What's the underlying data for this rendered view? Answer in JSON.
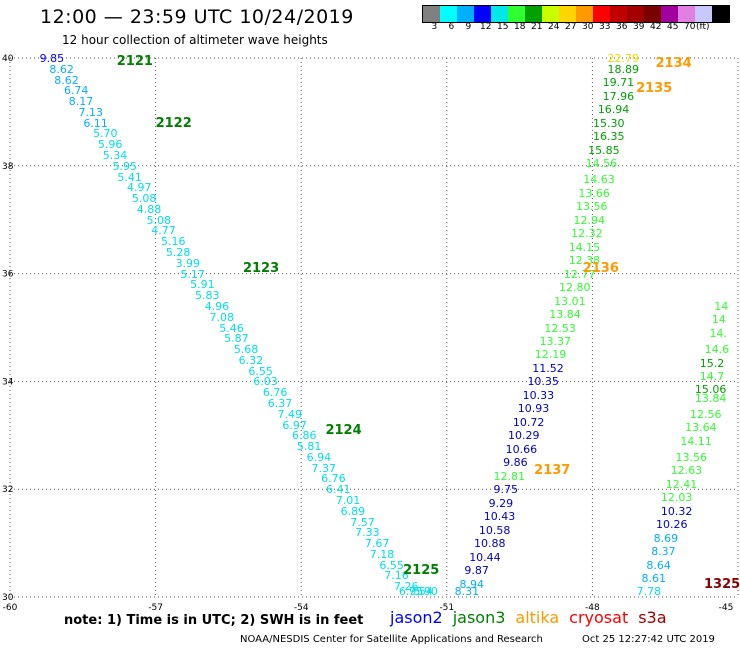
{
  "title": "12:00 — 23:59 UTC 10/24/2019",
  "subtitle": "12 hour collection of altimeter wave heights",
  "colorbar": {
    "colors": [
      "#808080",
      "#00ffff",
      "#00b0ff",
      "#0000ff",
      "#00e8e8",
      "#30ff30",
      "#00a000",
      "#c8ff00",
      "#ffd400",
      "#ff9900",
      "#ff0000",
      "#c00000",
      "#a00000",
      "#7a0000",
      "#a000a0",
      "#e080e0",
      "#c8c8ff",
      "#000000"
    ],
    "labels": [
      "3",
      "6",
      "9",
      "12",
      "15",
      "18",
      "21",
      "24",
      "27",
      "30",
      "33",
      "36",
      "39",
      "42",
      "45",
      "70",
      "(ft)"
    ]
  },
  "axes": {
    "lon_ticks": [
      "-60",
      "-57",
      "-54",
      "-51",
      "-48",
      "-45"
    ],
    "lat_ticks": [
      "40",
      "38",
      "36",
      "34",
      "32",
      "30"
    ],
    "lon_range": [
      -60,
      -45
    ],
    "lat_range": [
      30,
      40
    ]
  },
  "chart_data": {
    "type": "scatter",
    "tracks": [
      {
        "id": "2121",
        "satellite": "jason3",
        "lon": -57.8,
        "lat": 39.95
      },
      {
        "id": "2122",
        "satellite": "jason3",
        "lon": -57.0,
        "lat": 38.8
      },
      {
        "id": "2123",
        "satellite": "jason3",
        "lon": -55.2,
        "lat": 36.1
      },
      {
        "id": "2124",
        "satellite": "jason3",
        "lon": -53.5,
        "lat": 33.1
      },
      {
        "id": "2125",
        "satellite": "jason3",
        "lon": -51.9,
        "lat": 30.5
      },
      {
        "id": "2134",
        "satellite": "altika",
        "lon": -46.7,
        "lat": 39.9
      },
      {
        "id": "2135",
        "satellite": "altika",
        "lon": -47.1,
        "lat": 39.45
      },
      {
        "id": "2136",
        "satellite": "altika",
        "lon": -48.2,
        "lat": 36.1
      },
      {
        "id": "2137",
        "satellite": "altika",
        "lon": -49.2,
        "lat": 32.35
      },
      {
        "id": "1325",
        "satellite": "s3a",
        "lon": -45.6,
        "lat": 30.25
      }
    ],
    "points": [
      {
        "v": "9.85",
        "lon": -59.1,
        "lat": 40.0,
        "c": "#0000ff"
      },
      {
        "v": "8.62",
        "lon": -58.9,
        "lat": 39.8,
        "c": "#00b0ff"
      },
      {
        "v": "8.62",
        "lon": -58.8,
        "lat": 39.6,
        "c": "#00b0ff"
      },
      {
        "v": "6.74",
        "lon": -58.6,
        "lat": 39.4,
        "c": "#00b0ff"
      },
      {
        "v": "8.17",
        "lon": -58.5,
        "lat": 39.2,
        "c": "#00b0ff"
      },
      {
        "v": "7.13",
        "lon": -58.3,
        "lat": 39.0,
        "c": "#00b0ff"
      },
      {
        "v": "6.11",
        "lon": -58.2,
        "lat": 38.8,
        "c": "#00b0ff"
      },
      {
        "v": "5.70",
        "lon": -58.0,
        "lat": 38.6,
        "c": "#00e0e8"
      },
      {
        "v": "5.96",
        "lon": -57.9,
        "lat": 38.4,
        "c": "#00e0e8"
      },
      {
        "v": "5.34",
        "lon": -57.8,
        "lat": 38.2,
        "c": "#00e0e8"
      },
      {
        "v": "5.95",
        "lon": -57.6,
        "lat": 38.0,
        "c": "#00e0e8"
      },
      {
        "v": "5.41",
        "lon": -57.5,
        "lat": 37.8,
        "c": "#00e0e8"
      },
      {
        "v": "4.97",
        "lon": -57.3,
        "lat": 37.6,
        "c": "#00e0e8"
      },
      {
        "v": "5.08",
        "lon": -57.2,
        "lat": 37.4,
        "c": "#00e0e8"
      },
      {
        "v": "4.88",
        "lon": -57.1,
        "lat": 37.2,
        "c": "#00e0e8"
      },
      {
        "v": "5.08",
        "lon": -56.9,
        "lat": 37.0,
        "c": "#00e0e8"
      },
      {
        "v": "4.77",
        "lon": -56.8,
        "lat": 36.8,
        "c": "#00e0e8"
      },
      {
        "v": "5.16",
        "lon": -56.6,
        "lat": 36.6,
        "c": "#00e0e8"
      },
      {
        "v": "5.28",
        "lon": -56.5,
        "lat": 36.4,
        "c": "#00e0e8"
      },
      {
        "v": "3.99",
        "lon": -56.3,
        "lat": 36.2,
        "c": "#00e0e8"
      },
      {
        "v": "5.17",
        "lon": -56.2,
        "lat": 36.0,
        "c": "#00e0e8"
      },
      {
        "v": "5.91",
        "lon": -56.0,
        "lat": 35.8,
        "c": "#00e0e8"
      },
      {
        "v": "5.83",
        "lon": -55.9,
        "lat": 35.6,
        "c": "#00e0e8"
      },
      {
        "v": "4.96",
        "lon": -55.7,
        "lat": 35.4,
        "c": "#00e0e8"
      },
      {
        "v": "7.08",
        "lon": -55.6,
        "lat": 35.2,
        "c": "#00e0e8"
      },
      {
        "v": "5.46",
        "lon": -55.4,
        "lat": 35.0,
        "c": "#00e0e8"
      },
      {
        "v": "5.87",
        "lon": -55.3,
        "lat": 34.8,
        "c": "#00e0e8"
      },
      {
        "v": "5.68",
        "lon": -55.1,
        "lat": 34.6,
        "c": "#00e0e8"
      },
      {
        "v": "6.32",
        "lon": -55.0,
        "lat": 34.4,
        "c": "#00e0e8"
      },
      {
        "v": "6.55",
        "lon": -54.8,
        "lat": 34.2,
        "c": "#00e0e8"
      },
      {
        "v": "6.03",
        "lon": -54.7,
        "lat": 34.0,
        "c": "#00e0e8"
      },
      {
        "v": "6.76",
        "lon": -54.5,
        "lat": 33.8,
        "c": "#00e0e8"
      },
      {
        "v": "6.37",
        "lon": -54.4,
        "lat": 33.6,
        "c": "#00e0e8"
      },
      {
        "v": "7.49",
        "lon": -54.2,
        "lat": 33.4,
        "c": "#00e0e8"
      },
      {
        "v": "6.97",
        "lon": -54.1,
        "lat": 33.2,
        "c": "#00e0e8"
      },
      {
        "v": "6.86",
        "lon": -53.9,
        "lat": 33.0,
        "c": "#00e0e8"
      },
      {
        "v": "5.81",
        "lon": -53.8,
        "lat": 32.8,
        "c": "#00e0e8"
      },
      {
        "v": "6.94",
        "lon": -53.6,
        "lat": 32.6,
        "c": "#00e0e8"
      },
      {
        "v": "7.37",
        "lon": -53.5,
        "lat": 32.4,
        "c": "#00e0e8"
      },
      {
        "v": "6.76",
        "lon": -53.3,
        "lat": 32.2,
        "c": "#00e0e8"
      },
      {
        "v": "6.41",
        "lon": -53.2,
        "lat": 32.0,
        "c": "#00e0e8"
      },
      {
        "v": "7.01",
        "lon": -53.0,
        "lat": 31.8,
        "c": "#00e0e8"
      },
      {
        "v": "6.89",
        "lon": -52.9,
        "lat": 31.6,
        "c": "#00e0e8"
      },
      {
        "v": "7.57",
        "lon": -52.7,
        "lat": 31.4,
        "c": "#00e0e8"
      },
      {
        "v": "7.33",
        "lon": -52.6,
        "lat": 31.2,
        "c": "#00e0e8"
      },
      {
        "v": "7.67",
        "lon": -52.4,
        "lat": 31.0,
        "c": "#00e0e8"
      },
      {
        "v": "7.18",
        "lon": -52.3,
        "lat": 30.8,
        "c": "#00e0e8"
      },
      {
        "v": "6.55",
        "lon": -52.1,
        "lat": 30.6,
        "c": "#00e0e8"
      },
      {
        "v": "7.16",
        "lon": -52.0,
        "lat": 30.4,
        "c": "#00e0e8"
      },
      {
        "v": "7.26",
        "lon": -51.8,
        "lat": 30.2,
        "c": "#00e0e8"
      },
      {
        "v": "6.95",
        "lon": -51.7,
        "lat": 30.0,
        "c": "#00e0e8"
      },
      {
        "v": "7.54",
        "lon": -51.5,
        "lat": 29.8,
        "c": "#00e0e8"
      },
      {
        "v": "5.90",
        "lon": -51.4,
        "lat": 29.6,
        "c": "#00e0e8"
      },
      {
        "v": "22.79",
        "lon": -47.4,
        "lat": 40.0,
        "c": "#ffd400"
      },
      {
        "v": "18.89",
        "lon": -47.4,
        "lat": 39.8,
        "c": "#00a000"
      },
      {
        "v": "19.71",
        "lon": -47.5,
        "lat": 39.55,
        "c": "#00a000"
      },
      {
        "v": "17.96",
        "lon": -47.5,
        "lat": 39.3,
        "c": "#00a000"
      },
      {
        "v": "16.94",
        "lon": -47.6,
        "lat": 39.05,
        "c": "#00a000"
      },
      {
        "v": "15.30",
        "lon": -47.7,
        "lat": 38.8,
        "c": "#00a000"
      },
      {
        "v": "16.35",
        "lon": -47.7,
        "lat": 38.55,
        "c": "#00a000"
      },
      {
        "v": "15.85",
        "lon": -47.8,
        "lat": 38.3,
        "c": "#00a000"
      },
      {
        "v": "14.56",
        "lon": -47.85,
        "lat": 38.05,
        "c": "#30ff30"
      },
      {
        "v": "14.63",
        "lon": -47.9,
        "lat": 37.75,
        "c": "#30ff30"
      },
      {
        "v": "13.66",
        "lon": -48.0,
        "lat": 37.5,
        "c": "#30ff30"
      },
      {
        "v": "13.56",
        "lon": -48.05,
        "lat": 37.25,
        "c": "#30ff30"
      },
      {
        "v": "12.94",
        "lon": -48.1,
        "lat": 37.0,
        "c": "#30ff30"
      },
      {
        "v": "12.32",
        "lon": -48.15,
        "lat": 36.75,
        "c": "#30ff30"
      },
      {
        "v": "14.15",
        "lon": -48.2,
        "lat": 36.5,
        "c": "#30ff30"
      },
      {
        "v": "12.38",
        "lon": -48.2,
        "lat": 36.25,
        "c": "#30ff30"
      },
      {
        "v": "12.77",
        "lon": -48.3,
        "lat": 36.0,
        "c": "#30ff30"
      },
      {
        "v": "12.80",
        "lon": -48.4,
        "lat": 35.75,
        "c": "#30ff30"
      },
      {
        "v": "13.01",
        "lon": -48.5,
        "lat": 35.5,
        "c": "#30ff30"
      },
      {
        "v": "13.84",
        "lon": -48.6,
        "lat": 35.25,
        "c": "#30ff30"
      },
      {
        "v": "12.53",
        "lon": -48.7,
        "lat": 35.0,
        "c": "#30ff30"
      },
      {
        "v": "13.37",
        "lon": -48.8,
        "lat": 34.75,
        "c": "#30ff30"
      },
      {
        "v": "12.19",
        "lon": -48.9,
        "lat": 34.5,
        "c": "#30ff30"
      },
      {
        "v": "11.52",
        "lon": -48.95,
        "lat": 34.25,
        "c": "#0000cc"
      },
      {
        "v": "10.35",
        "lon": -49.05,
        "lat": 34.0,
        "c": "#0000cc"
      },
      {
        "v": "10.33",
        "lon": -49.15,
        "lat": 33.75,
        "c": "#0000cc"
      },
      {
        "v": "10.93",
        "lon": -49.25,
        "lat": 33.5,
        "c": "#0000cc"
      },
      {
        "v": "10.72",
        "lon": -49.35,
        "lat": 33.25,
        "c": "#0000cc"
      },
      {
        "v": "10.29",
        "lon": -49.45,
        "lat": 33.0,
        "c": "#0000cc"
      },
      {
        "v": "10.66",
        "lon": -49.5,
        "lat": 32.75,
        "c": "#0000cc"
      },
      {
        "v": "9.86",
        "lon": -49.55,
        "lat": 32.5,
        "c": "#0000cc"
      },
      {
        "v": "12.81",
        "lon": -49.75,
        "lat": 32.25,
        "c": "#30ff30"
      },
      {
        "v": "9.75",
        "lon": -49.75,
        "lat": 32.0,
        "c": "#0000cc"
      },
      {
        "v": "9.29",
        "lon": -49.85,
        "lat": 31.75,
        "c": "#0000cc"
      },
      {
        "v": "10.43",
        "lon": -49.95,
        "lat": 31.5,
        "c": "#0000cc"
      },
      {
        "v": "10.58",
        "lon": -50.05,
        "lat": 31.25,
        "c": "#0000cc"
      },
      {
        "v": "10.88",
        "lon": -50.15,
        "lat": 31.0,
        "c": "#0000cc"
      },
      {
        "v": "10.44",
        "lon": -50.25,
        "lat": 30.75,
        "c": "#0000cc"
      },
      {
        "v": "9.87",
        "lon": -50.35,
        "lat": 30.5,
        "c": "#0000cc"
      },
      {
        "v": "8.94",
        "lon": -50.45,
        "lat": 30.25,
        "c": "#00b0ff"
      },
      {
        "v": "8.31",
        "lon": -50.55,
        "lat": 30.0,
        "c": "#00b0ff"
      },
      {
        "v": "14",
        "lon": -45.2,
        "lat": 35.4,
        "c": "#30ff30"
      },
      {
        "v": "14",
        "lon": -45.25,
        "lat": 35.15,
        "c": "#30ff30"
      },
      {
        "v": "14.",
        "lon": -45.3,
        "lat": 34.9,
        "c": "#30ff30"
      },
      {
        "v": "14.6",
        "lon": -45.4,
        "lat": 34.6,
        "c": "#30ff30"
      },
      {
        "v": "15.2",
        "lon": -45.5,
        "lat": 34.35,
        "c": "#00a000"
      },
      {
        "v": "14.7",
        "lon": -45.5,
        "lat": 34.1,
        "c": "#30ff30"
      },
      {
        "v": "15.06",
        "lon": -45.6,
        "lat": 33.85,
        "c": "#00a000"
      },
      {
        "v": "13.84",
        "lon": -45.6,
        "lat": 33.7,
        "c": "#30ff30"
      },
      {
        "v": "12.56",
        "lon": -45.7,
        "lat": 33.4,
        "c": "#30ff30"
      },
      {
        "v": "13.64",
        "lon": -45.8,
        "lat": 33.15,
        "c": "#30ff30"
      },
      {
        "v": "14.11",
        "lon": -45.9,
        "lat": 32.9,
        "c": "#30ff30"
      },
      {
        "v": "13.56",
        "lon": -46.0,
        "lat": 32.6,
        "c": "#30ff30"
      },
      {
        "v": "12.63",
        "lon": -46.1,
        "lat": 32.35,
        "c": "#30ff30"
      },
      {
        "v": "12.41",
        "lon": -46.2,
        "lat": 32.1,
        "c": "#30ff30"
      },
      {
        "v": "12.03",
        "lon": -46.3,
        "lat": 31.85,
        "c": "#30ff30"
      },
      {
        "v": "10.32",
        "lon": -46.3,
        "lat": 31.6,
        "c": "#0000cc"
      },
      {
        "v": "10.26",
        "lon": -46.4,
        "lat": 31.35,
        "c": "#0000cc"
      },
      {
        "v": "8.69",
        "lon": -46.45,
        "lat": 31.1,
        "c": "#00b0ff"
      },
      {
        "v": "8.37",
        "lon": -46.5,
        "lat": 30.85,
        "c": "#00b0ff"
      },
      {
        "v": "8.64",
        "lon": -46.6,
        "lat": 30.6,
        "c": "#00b0ff"
      },
      {
        "v": "8.61",
        "lon": -46.7,
        "lat": 30.35,
        "c": "#00b0ff"
      },
      {
        "v": "7.78",
        "lon": -46.8,
        "lat": 30.1,
        "c": "#00e0e8"
      }
    ]
  },
  "note": "note:  1) Time is in UTC;  2) SWH is in feet",
  "satellites": [
    {
      "name": "jason2",
      "color": "#0000ff"
    },
    {
      "name": "jason3",
      "color": "#008000"
    },
    {
      "name": "altika",
      "color": "#ff9900"
    },
    {
      "name": "cryosat",
      "color": "#ff0000"
    },
    {
      "name": "s3a",
      "color": "#a00000"
    }
  ],
  "credit": "NOAA/NESDIS Center for Satellite Applications and Research",
  "timestamp": "Oct 25 12:27:42 UTC 2019",
  "track_colors": {
    "jason3": "#008000",
    "altika": "#ff9900",
    "s3a": "#8b0000"
  }
}
